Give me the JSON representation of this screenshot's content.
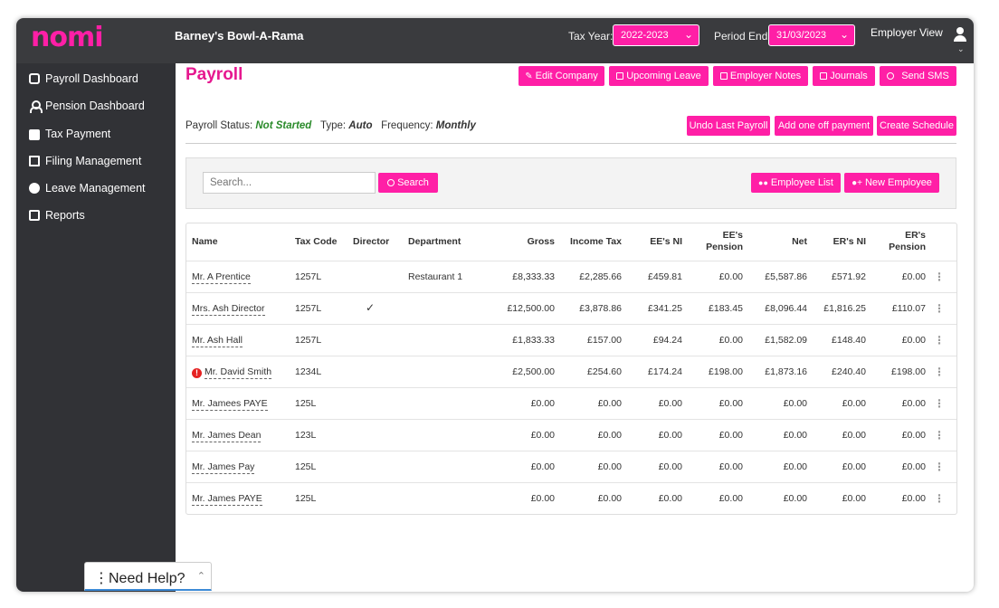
{
  "header": {
    "logo": "nomi",
    "company": "Barney's Bowl-A-Rama",
    "tax_year_label": "Tax Year:",
    "tax_year_value": "2022-2023",
    "period_end_label": "Period End:",
    "period_end_value": "31/03/2023",
    "view_label": "Employer View"
  },
  "sidebar": {
    "items": [
      {
        "label": "Payroll Dashboard",
        "icon": "hand-coins-icon"
      },
      {
        "label": "Pension Dashboard",
        "icon": "person-icon"
      },
      {
        "label": "Tax Payment",
        "icon": "briefcase-icon"
      },
      {
        "label": "Filing Management",
        "icon": "file-icon"
      },
      {
        "label": "Leave Management",
        "icon": "globe-icon"
      },
      {
        "label": "Reports",
        "icon": "clipboard-icon"
      }
    ]
  },
  "page": {
    "title": "Payroll",
    "top_buttons": [
      "Edit Company",
      "Upcoming Leave",
      "Employer Notes",
      "Journals",
      "Send SMS"
    ],
    "status_label": "Payroll Status:",
    "status_value": "Not Started",
    "type_label": "Type:",
    "type_value": "Auto",
    "frequency_label": "Frequency:",
    "frequency_value": "Monthly",
    "action_buttons": [
      "Undo Last Payroll",
      "Add one off payment",
      "Create Schedule"
    ]
  },
  "search": {
    "placeholder": "Search...",
    "button": "Search",
    "employee_list": "Employee List",
    "new_employee": "New Employee"
  },
  "table": {
    "headers": [
      "Name",
      "Tax Code",
      "Director",
      "Department",
      "Gross",
      "Income Tax",
      "EE's NI",
      "EE's Pension",
      "Net",
      "ER's NI",
      "ER's Pension"
    ],
    "rows": [
      {
        "name": "Mr. A Prentice",
        "tax_code": "1257L",
        "director": "",
        "department": "Restaurant 1",
        "gross": "£8,333.33",
        "income_tax": "£2,285.66",
        "ee_ni": "£459.81",
        "ee_pension": "£0.00",
        "net": "£5,587.86",
        "er_ni": "£571.92",
        "er_pension": "£0.00",
        "warning": false
      },
      {
        "name": "Mrs. Ash Director",
        "tax_code": "1257L",
        "director": "✓",
        "department": "",
        "gross": "£12,500.00",
        "income_tax": "£3,878.86",
        "ee_ni": "£341.25",
        "ee_pension": "£183.45",
        "net": "£8,096.44",
        "er_ni": "£1,816.25",
        "er_pension": "£110.07",
        "warning": false
      },
      {
        "name": "Mr. Ash Hall",
        "tax_code": "1257L",
        "director": "",
        "department": "",
        "gross": "£1,833.33",
        "income_tax": "£157.00",
        "ee_ni": "£94.24",
        "ee_pension": "£0.00",
        "net": "£1,582.09",
        "er_ni": "£148.40",
        "er_pension": "£0.00",
        "warning": false
      },
      {
        "name": "Mr. David Smith",
        "tax_code": "1234L",
        "director": "",
        "department": "",
        "gross": "£2,500.00",
        "income_tax": "£254.60",
        "ee_ni": "£174.24",
        "ee_pension": "£198.00",
        "net": "£1,873.16",
        "er_ni": "£240.40",
        "er_pension": "£198.00",
        "warning": true
      },
      {
        "name": "Mr. Jamees PAYE",
        "tax_code": "125L",
        "director": "",
        "department": "",
        "gross": "£0.00",
        "income_tax": "£0.00",
        "ee_ni": "£0.00",
        "ee_pension": "£0.00",
        "net": "£0.00",
        "er_ni": "£0.00",
        "er_pension": "£0.00",
        "warning": false
      },
      {
        "name": "Mr. James Dean",
        "tax_code": "123L",
        "director": "",
        "department": "",
        "gross": "£0.00",
        "income_tax": "£0.00",
        "ee_ni": "£0.00",
        "ee_pension": "£0.00",
        "net": "£0.00",
        "er_ni": "£0.00",
        "er_pension": "£0.00",
        "warning": false
      },
      {
        "name": "Mr. James Pay",
        "tax_code": "125L",
        "director": "",
        "department": "",
        "gross": "£0.00",
        "income_tax": "£0.00",
        "ee_ni": "£0.00",
        "ee_pension": "£0.00",
        "net": "£0.00",
        "er_ni": "£0.00",
        "er_pension": "£0.00",
        "warning": false
      },
      {
        "name": "Mr. James PAYE",
        "tax_code": "125L",
        "director": "",
        "department": "",
        "gross": "£0.00",
        "income_tax": "£0.00",
        "ee_ni": "£0.00",
        "ee_pension": "£0.00",
        "net": "£0.00",
        "er_ni": "£0.00",
        "er_pension": "£0.00",
        "warning": false
      }
    ]
  },
  "help": {
    "label": "Need Help?"
  },
  "colors": {
    "brand": "#ff1fa6",
    "header_bg": "#3a3b3e",
    "sidebar_bg": "#313236",
    "status_ok": "#2a8a2a",
    "warning": "#e52222"
  }
}
